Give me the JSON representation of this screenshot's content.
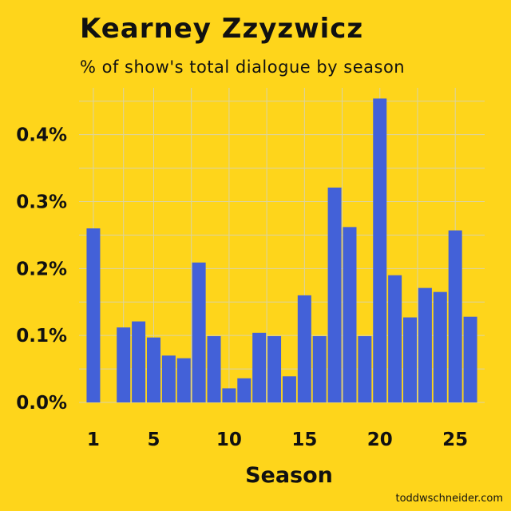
{
  "title": "Kearney Zzyzwicz",
  "subtitle": "% of show's total dialogue by season",
  "credit": "toddwschneider.com",
  "colors": {
    "background": "#FED51B",
    "bar": "#4361D8",
    "grid": "#D9D3A8"
  },
  "chart_data": {
    "type": "bar",
    "title": "Kearney Zzyzwicz",
    "subtitle": "% of show's total dialogue by season",
    "xlabel": "Season",
    "ylabel": "",
    "x": [
      1,
      2,
      3,
      4,
      5,
      6,
      7,
      8,
      9,
      10,
      11,
      12,
      13,
      14,
      15,
      16,
      17,
      18,
      19,
      20,
      21,
      22,
      23,
      24,
      25,
      26
    ],
    "values": [
      0.26,
      0,
      0.112,
      0.121,
      0.097,
      0.07,
      0.066,
      0.209,
      0.099,
      0.021,
      0.036,
      0.104,
      0.099,
      0.039,
      0.16,
      0.099,
      0.321,
      0.262,
      0.099,
      0.454,
      0.19,
      0.127,
      0.171,
      0.165,
      0.257,
      0.128
    ],
    "xticks": [
      1,
      5,
      10,
      15,
      20,
      25
    ],
    "xtick_labels": [
      "1",
      "5",
      "10",
      "15",
      "20",
      "25"
    ],
    "yticks": [
      0,
      0.1,
      0.2,
      0.3,
      0.4
    ],
    "ytick_labels": [
      "0.0%",
      "0.1%",
      "0.2%",
      "0.3%",
      "0.4%"
    ],
    "ylim": [
      0,
      0.47
    ],
    "xlim": [
      0.05,
      26.95
    ],
    "grid": true,
    "legend": "none"
  }
}
